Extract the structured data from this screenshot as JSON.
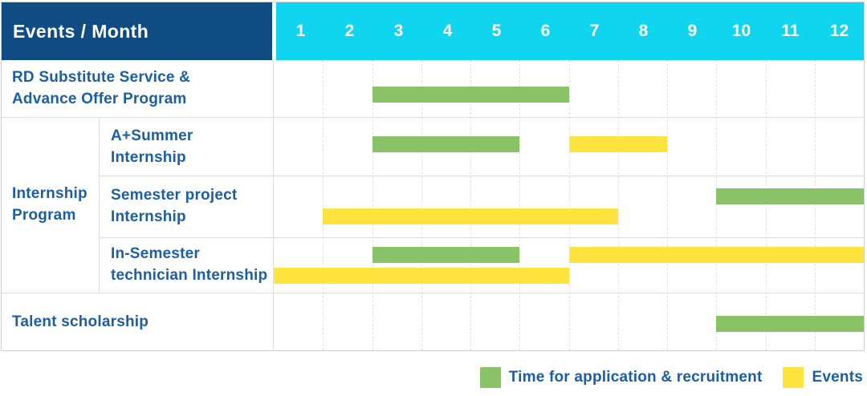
{
  "header": {
    "title": "Events / Month",
    "months": [
      "1",
      "2",
      "3",
      "4",
      "5",
      "6",
      "7",
      "8",
      "9",
      "10",
      "11",
      "12"
    ]
  },
  "group": {
    "label_lines": [
      "Internship",
      "Program"
    ]
  },
  "rows": [
    {
      "label_lines": [
        "RD Substitute Service &",
        "Advance Offer Program"
      ],
      "bars": [
        {
          "kind": "recruitment",
          "start": 3,
          "end": 6,
          "lane": 0
        }
      ]
    },
    {
      "label_lines": [
        "A+Summer",
        "Internship"
      ],
      "bars": [
        {
          "kind": "recruitment",
          "start": 3,
          "end": 5,
          "lane": 0
        },
        {
          "kind": "events",
          "start": 7,
          "end": 8,
          "lane": 0
        }
      ]
    },
    {
      "label_lines": [
        "Semester project",
        "Internship"
      ],
      "bars": [
        {
          "kind": "recruitment",
          "start": 10,
          "end": 12,
          "lane": 0
        },
        {
          "kind": "events",
          "start": 2,
          "end": 7,
          "lane": 1
        }
      ]
    },
    {
      "label_lines": [
        "In-Semester",
        "technician Internship"
      ],
      "bars": [
        {
          "kind": "recruitment",
          "start": 3,
          "end": 5,
          "lane": 0
        },
        {
          "kind": "events",
          "start": 7,
          "end": 12,
          "lane": 0
        },
        {
          "kind": "events",
          "start": 1,
          "end": 6,
          "lane": 1
        }
      ]
    },
    {
      "label_lines": [
        "Talent scholarship"
      ],
      "bars": [
        {
          "kind": "recruitment",
          "start": 10,
          "end": 12,
          "lane": 0
        }
      ]
    }
  ],
  "legend": [
    {
      "kind": "recruitment",
      "label": "Time for application & recruitment"
    },
    {
      "kind": "events",
      "label": "Events"
    }
  ],
  "colors": {
    "header_bg": "#0f4c84",
    "months_bg": "#0fd5ef",
    "green_recruitment": "#8ac268",
    "yellow_events": "#ffe440",
    "label_text": "#1b5ea6"
  },
  "chart_data": {
    "type": "table",
    "subtype": "gantt-timeline",
    "title": "Events / Month",
    "x_axis_months": [
      1,
      2,
      3,
      4,
      5,
      6,
      7,
      8,
      9,
      10,
      11,
      12
    ],
    "legend": {
      "green": "Time for application & recruitment",
      "yellow": "Events"
    },
    "tasks": [
      {
        "event": "RD Substitute Service & Advance Offer Program",
        "group": null,
        "application_recruitment_month_ranges": [
          [
            3,
            6
          ]
        ],
        "events_month_ranges": []
      },
      {
        "event": "A+Summer Internship",
        "group": "Internship Program",
        "application_recruitment_month_ranges": [
          [
            3,
            5
          ]
        ],
        "events_month_ranges": [
          [
            7,
            8
          ]
        ]
      },
      {
        "event": "Semester project Internship",
        "group": "Internship Program",
        "application_recruitment_month_ranges": [
          [
            10,
            12
          ]
        ],
        "events_month_ranges": [
          [
            2,
            7
          ]
        ]
      },
      {
        "event": "In-Semester technician Internship",
        "group": "Internship Program",
        "application_recruitment_month_ranges": [
          [
            3,
            5
          ]
        ],
        "events_month_ranges": [
          [
            1,
            6
          ],
          [
            7,
            12
          ]
        ]
      },
      {
        "event": "Talent scholarship",
        "group": null,
        "application_recruitment_month_ranges": [
          [
            10,
            12
          ]
        ],
        "events_month_ranges": []
      }
    ]
  }
}
